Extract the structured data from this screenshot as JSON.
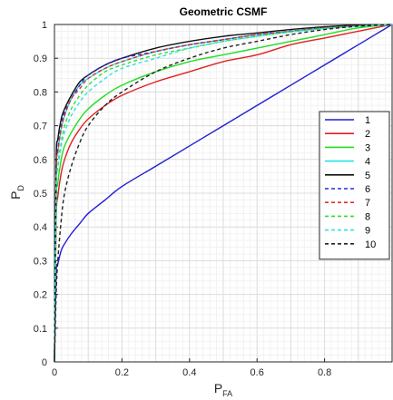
{
  "chart_data": {
    "type": "line",
    "title": "Geometric CSMF",
    "xlabel": "P",
    "xlabel_sub": "FA",
    "ylabel": "P",
    "ylabel_sub": "D",
    "xlim": [
      0,
      1
    ],
    "ylim": [
      0,
      1
    ],
    "x_ticks": [
      0,
      0.2,
      0.4,
      0.6,
      0.8
    ],
    "x_tick_labels": [
      "0",
      "0.2",
      "0.4",
      "0.6",
      "0.8"
    ],
    "y_ticks": [
      0,
      0.1,
      0.2,
      0.3,
      0.4,
      0.5,
      0.6,
      0.7,
      0.8,
      0.9,
      1
    ],
    "y_tick_labels": [
      "0",
      "0.1",
      "0.2",
      "0.3",
      "0.4",
      "0.5",
      "0.6",
      "0.7",
      "0.8",
      "0.9",
      "1"
    ],
    "grid": true,
    "minor_grid": true,
    "legend_position": "right",
    "x": [
      0,
      0.005,
      0.01,
      0.02,
      0.03,
      0.05,
      0.075,
      0.1,
      0.15,
      0.2,
      0.3,
      0.4,
      0.5,
      0.6,
      0.7,
      0.8,
      0.9,
      1.0
    ],
    "series": [
      {
        "name": "1",
        "color": "#1f1fd0",
        "dash": false,
        "values": [
          0,
          0.26,
          0.29,
          0.33,
          0.35,
          0.38,
          0.41,
          0.44,
          0.48,
          0.52,
          0.58,
          0.64,
          0.7,
          0.76,
          0.82,
          0.88,
          0.94,
          1.0
        ]
      },
      {
        "name": "2",
        "color": "#e02020",
        "dash": false,
        "values": [
          0,
          0.42,
          0.49,
          0.56,
          0.6,
          0.65,
          0.69,
          0.72,
          0.76,
          0.79,
          0.83,
          0.86,
          0.89,
          0.91,
          0.94,
          0.96,
          0.98,
          1.0
        ]
      },
      {
        "name": "3",
        "color": "#22dd22",
        "dash": false,
        "values": [
          0,
          0.46,
          0.53,
          0.6,
          0.64,
          0.68,
          0.72,
          0.75,
          0.79,
          0.82,
          0.86,
          0.89,
          0.91,
          0.93,
          0.95,
          0.97,
          0.99,
          1.0
        ]
      },
      {
        "name": "4",
        "color": "#22e6e6",
        "dash": false,
        "values": [
          0,
          0.54,
          0.62,
          0.69,
          0.73,
          0.78,
          0.82,
          0.84,
          0.87,
          0.89,
          0.92,
          0.94,
          0.955,
          0.97,
          0.98,
          0.99,
          0.995,
          1.0
        ]
      },
      {
        "name": "5",
        "color": "#111111",
        "dash": false,
        "values": [
          0,
          0.58,
          0.66,
          0.72,
          0.75,
          0.79,
          0.83,
          0.85,
          0.88,
          0.9,
          0.93,
          0.95,
          0.965,
          0.975,
          0.985,
          0.993,
          0.998,
          1.0
        ]
      },
      {
        "name": "6",
        "color": "#2a2ad8",
        "dash": true,
        "values": [
          0,
          0.55,
          0.63,
          0.7,
          0.74,
          0.78,
          0.82,
          0.85,
          0.88,
          0.9,
          0.92,
          0.94,
          0.955,
          0.97,
          0.98,
          0.99,
          0.996,
          1.0
        ]
      },
      {
        "name": "7",
        "color": "#e03030",
        "dash": true,
        "values": [
          0,
          0.55,
          0.62,
          0.69,
          0.73,
          0.78,
          0.81,
          0.84,
          0.87,
          0.89,
          0.92,
          0.94,
          0.955,
          0.97,
          0.98,
          0.99,
          0.996,
          1.0
        ]
      },
      {
        "name": "8",
        "color": "#30dd30",
        "dash": true,
        "values": [
          0,
          0.5,
          0.58,
          0.65,
          0.7,
          0.75,
          0.79,
          0.82,
          0.86,
          0.88,
          0.91,
          0.93,
          0.95,
          0.965,
          0.978,
          0.988,
          0.995,
          1.0
        ]
      },
      {
        "name": "9",
        "color": "#30e0e0",
        "dash": true,
        "values": [
          0,
          0.5,
          0.57,
          0.64,
          0.68,
          0.73,
          0.77,
          0.8,
          0.84,
          0.87,
          0.9,
          0.93,
          0.95,
          0.965,
          0.978,
          0.988,
          0.995,
          1.0
        ]
      },
      {
        "name": "10",
        "color": "#222222",
        "dash": true,
        "values": [
          0,
          0.2,
          0.3,
          0.42,
          0.5,
          0.58,
          0.65,
          0.7,
          0.76,
          0.8,
          0.86,
          0.9,
          0.93,
          0.95,
          0.97,
          0.985,
          0.995,
          1.0
        ]
      }
    ]
  }
}
